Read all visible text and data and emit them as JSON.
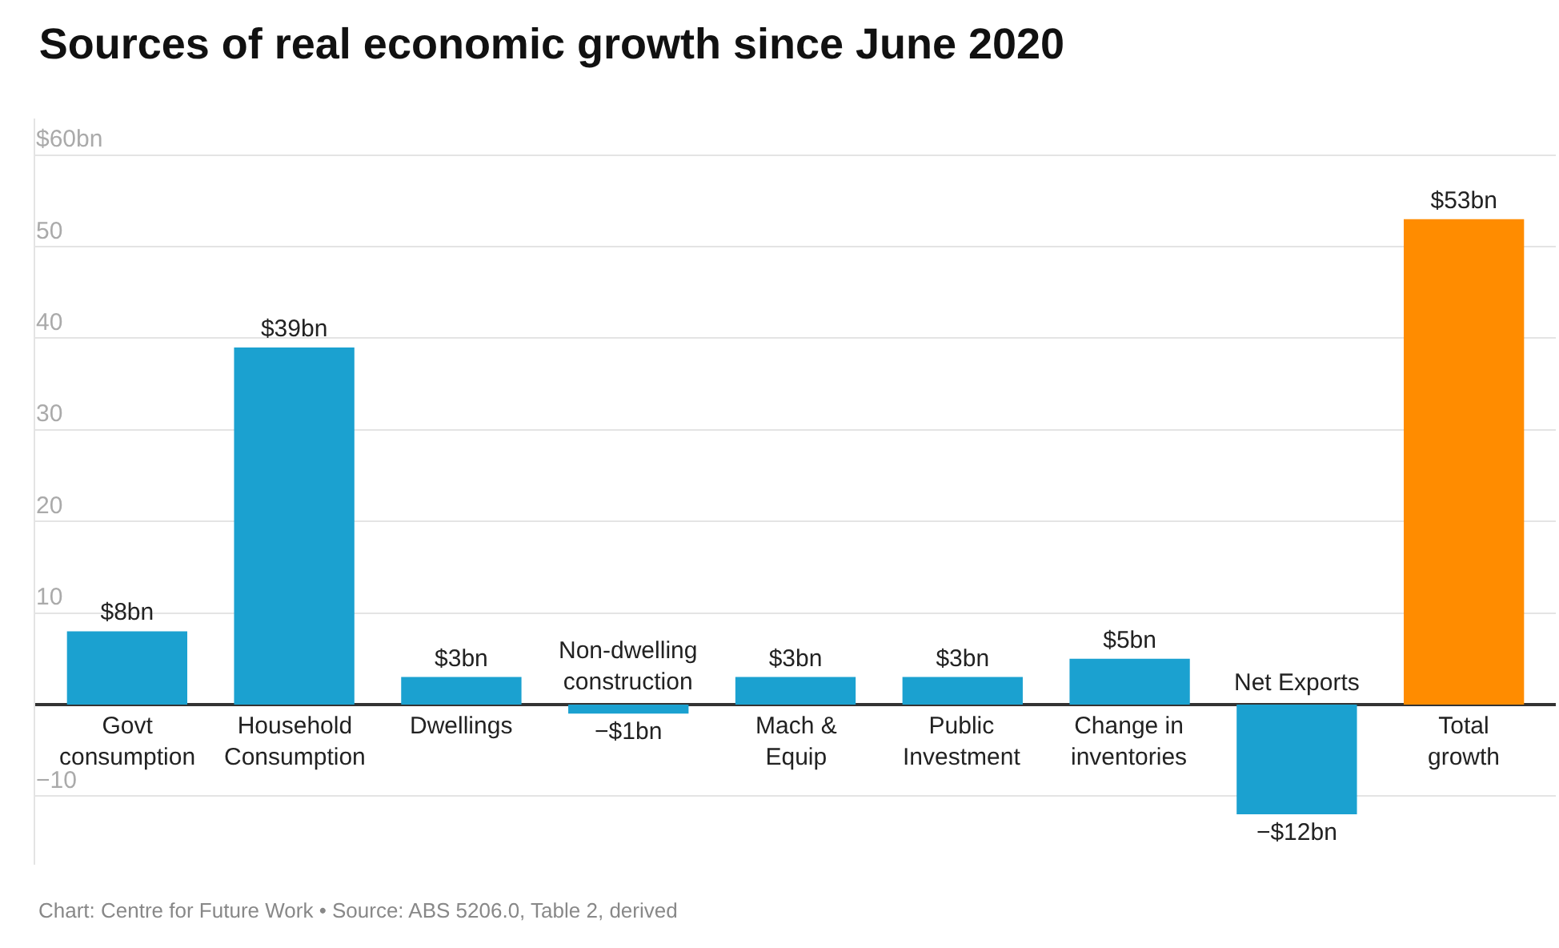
{
  "chart_data": {
    "type": "bar",
    "title": "Sources of real economic growth since June 2020",
    "categories": [
      "Govt consumption",
      "Household Consumption",
      "Dwellings",
      "Non-dwelling construction",
      "Mach & Equip",
      "Public Investment",
      "Change in inventories",
      "Net Exports",
      "Total growth"
    ],
    "values": [
      8,
      39,
      3,
      -1,
      3,
      3,
      5,
      -12,
      53
    ],
    "value_labels": [
      "$8bn",
      "$39bn",
      "$3bn",
      "−$1bn",
      "$3bn",
      "$3bn",
      "$5bn",
      "−$12bn",
      "$53bn"
    ],
    "colors": [
      "#1ba1d0",
      "#1ba1d0",
      "#1ba1d0",
      "#1ba1d0",
      "#1ba1d0",
      "#1ba1d0",
      "#1ba1d0",
      "#1ba1d0",
      "#ff8c00"
    ],
    "ylim": [
      -17.5,
      64
    ],
    "yticks": [
      {
        "value": 60,
        "label": "$60bn"
      },
      50,
      40,
      30,
      20,
      10,
      {
        "value": 0,
        "label": null
      },
      {
        "value": -10,
        "label": "−10"
      }
    ],
    "grid": "y",
    "annotations": [
      "Chart: Centre for Future Work • Source: ABS 5206.0, Table 2, derived"
    ]
  }
}
